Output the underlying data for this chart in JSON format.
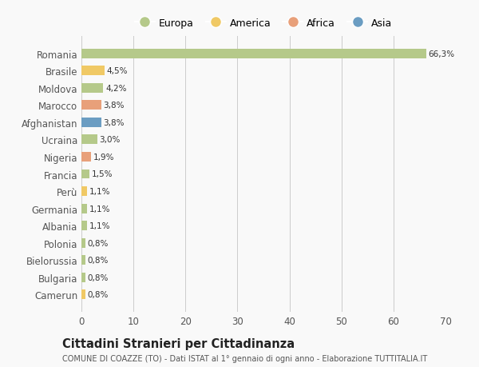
{
  "countries": [
    "Romania",
    "Brasile",
    "Moldova",
    "Marocco",
    "Afghanistan",
    "Ucraina",
    "Nigeria",
    "Francia",
    "Perù",
    "Germania",
    "Albania",
    "Polonia",
    "Bielorussia",
    "Bulgaria",
    "Camerun"
  ],
  "values": [
    66.3,
    4.5,
    4.2,
    3.8,
    3.8,
    3.0,
    1.9,
    1.5,
    1.1,
    1.1,
    1.1,
    0.8,
    0.8,
    0.8,
    0.8
  ],
  "labels": [
    "66,3%",
    "4,5%",
    "4,2%",
    "3,8%",
    "3,8%",
    "3,0%",
    "1,9%",
    "1,5%",
    "1,1%",
    "1,1%",
    "1,1%",
    "0,8%",
    "0,8%",
    "0,8%",
    "0,8%"
  ],
  "colors": [
    "#b5c98a",
    "#f0c965",
    "#b5c98a",
    "#e8a07a",
    "#6b9dc2",
    "#b5c98a",
    "#e8a07a",
    "#b5c98a",
    "#f0c965",
    "#b5c98a",
    "#b5c98a",
    "#b5c98a",
    "#b5c98a",
    "#b5c98a",
    "#f0c965"
  ],
  "legend_labels": [
    "Europa",
    "America",
    "Africa",
    "Asia"
  ],
  "legend_colors": [
    "#b5c98a",
    "#f0c965",
    "#e8a07a",
    "#6b9dc2"
  ],
  "title": "Cittadini Stranieri per Cittadinanza",
  "subtitle": "COMUNE DI COAZZE (TO) - Dati ISTAT al 1° gennaio di ogni anno - Elaborazione TUTTITALIA.IT",
  "xlim": [
    0,
    70
  ],
  "xticks": [
    0,
    10,
    20,
    30,
    40,
    50,
    60,
    70
  ],
  "background_color": "#f9f9f9",
  "grid_color": "#cccccc"
}
